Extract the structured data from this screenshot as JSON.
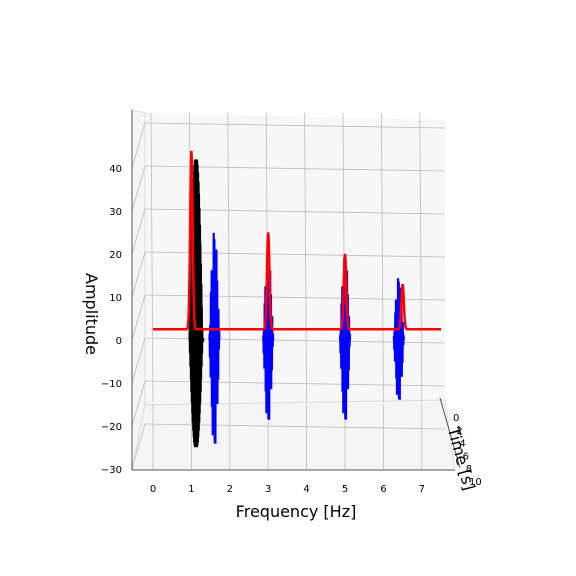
{
  "chart_data": {
    "type": "line",
    "projection": "3d",
    "xlabel": "Frequency [Hz]",
    "ylabel": "Amplitude",
    "zlabel": "Time [s]",
    "x_ticks": [
      "0",
      "1",
      "2",
      "3",
      "4",
      "5",
      "6",
      "7"
    ],
    "y_ticks": [
      "40",
      "30",
      "20",
      "10",
      "0",
      "−10",
      "−20",
      "−30"
    ],
    "z_ticks": [
      "0",
      "2",
      "4",
      "6",
      "8",
      "10"
    ],
    "xlim": [
      -0.4,
      7.6
    ],
    "ylim": [
      -30,
      45
    ],
    "grid": true,
    "colors": {
      "spectrum": "#ff0000",
      "time_signal": "#0000ff",
      "black_signal": "#000000"
    },
    "series": [
      {
        "style": "spectrum",
        "baseline": 2.5,
        "peaks": [
          {
            "x": 1.0,
            "y": 44
          },
          {
            "x": 3.0,
            "y": 25
          },
          {
            "x": 5.0,
            "y": 20
          },
          {
            "x": 6.5,
            "y": 13
          }
        ]
      },
      {
        "style": "time_signal",
        "bursts": [
          {
            "x": 1.6,
            "amplitude": 26
          },
          {
            "x": 3.0,
            "amplitude": 20
          },
          {
            "x": 5.0,
            "amplitude": 20
          },
          {
            "x": 6.4,
            "amplitude": 15
          }
        ]
      },
      {
        "style": "black_signal",
        "bursts": [
          {
            "x": 1.15,
            "amplitude": 42,
            "low": -25
          }
        ]
      }
    ]
  }
}
